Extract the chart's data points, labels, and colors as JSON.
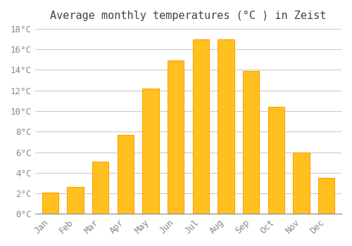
{
  "title": "Average monthly temperatures (°C ) in Zeist",
  "months": [
    "Jan",
    "Feb",
    "Mar",
    "Apr",
    "May",
    "Jun",
    "Jul",
    "Aug",
    "Sep",
    "Oct",
    "Nov",
    "Dec"
  ],
  "values": [
    2.1,
    2.6,
    5.1,
    7.7,
    12.2,
    14.9,
    17.0,
    17.0,
    13.9,
    10.4,
    6.0,
    3.5
  ],
  "bar_color": "#FFC020",
  "bar_edge_color": "#FFA000",
  "background_color": "#FFFFFF",
  "grid_color": "#CCCCCC",
  "ylim": [
    0,
    18
  ],
  "yticks": [
    0,
    2,
    4,
    6,
    8,
    10,
    12,
    14,
    16,
    18
  ],
  "ylabel_suffix": "°C",
  "title_fontsize": 11,
  "tick_fontsize": 9,
  "font_family": "monospace"
}
